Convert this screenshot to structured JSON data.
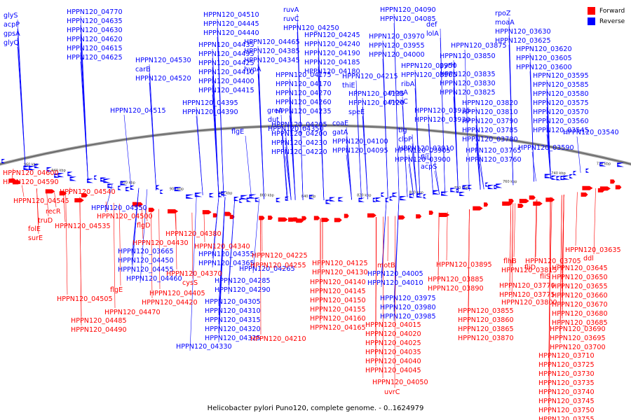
{
  "legend": {
    "forward": {
      "label": "Forward",
      "color": "#ff0000"
    },
    "reverse": {
      "label": "Reverse",
      "color": "#0000ff"
    }
  },
  "caption": "Helicobacter pylori Puno120, complete genome. - 0..1624979",
  "axis_ticks": [
    "960 kbp",
    "940 kbp",
    "920 kbp",
    "900 kbp",
    "880 kbp",
    "860 kbp",
    "840 kbp",
    "820 kbp",
    "800 kbp",
    "780 kbp",
    "760 kbp",
    "740 kbp",
    "720 kbp"
  ],
  "reverse_labels": [
    "glyS",
    "acpP",
    "gpsA",
    "glyQ",
    "HPPN120_04770",
    "HPPN120_04635",
    "HPPN120_04630",
    "HPPN120_04620",
    "HPPN120_04615",
    "HPPN120_04625",
    "HPPN120_04530",
    "carB",
    "HPPN120_04520",
    "HPPN120_04515",
    "HPPN120_04550",
    "HPPN120_04510",
    "HPPN120_04445",
    "HPPN120_04440",
    "HPPN120_04435",
    "HPPN120_04495",
    "HPPN120_04425",
    "HPPN120_04410",
    "HPPN120_04400",
    "HPPN120_04415",
    "HPPN120_04395",
    "HPPN120_04390",
    "HPPN120_04465",
    "HPPN120_04385",
    "HPPN120_04345",
    "hypA",
    "greA",
    "dut",
    "HPPN120_04350",
    "flgE",
    "ruvA",
    "ruvC",
    "HPPN120_04250",
    "HPPN120_04245",
    "HPPN120_04240",
    "HPPN120_04190",
    "HPPN120_04185",
    "HPPN120_04180",
    "HPPN120_04175",
    "HPPN120_04170",
    "HPPN120_04270",
    "HPPN120_04260",
    "HPPN120_04235",
    "HPPN120_04205",
    "HPPN120_04200",
    "HPPN120_04230",
    "HPPN120_04220",
    "HPPN120_04215",
    "thiE",
    "HPPN120_04135",
    "HPPN120_04120",
    "speE",
    "coaE",
    "gatA",
    "HPPN120_04100",
    "HPPN120_04095",
    "HPPN120_04090",
    "HPPN120_04085",
    "HPPN120_03970",
    "HPPN120_03955",
    "HPPN120_04000",
    "HPPN120_03950",
    "HPPN120_03965",
    "ribA",
    "mogA",
    "moaC",
    "HPPN120_03935",
    "HPPN120_03930",
    "tig",
    "clpP",
    "HPPN120_03910",
    "HPPN120_03905",
    "HPPN120_03900",
    "fliL",
    "acpS",
    "def",
    "lolA",
    "HPPN120_03875",
    "HPPN120_03850",
    "pyrH",
    "HPPN120_03835",
    "HPPN120_03830",
    "HPPN120_03825",
    "HPPN120_03820",
    "HPPN120_03810",
    "HPPN120_03790",
    "HPPN120_03785",
    "HPPN120_03780",
    "HPPN120_03765",
    "HPPN120_03760",
    "rpoZ",
    "moaA",
    "HPPN120_03630",
    "HPPN120_03625",
    "HPPN120_03620",
    "HPPN120_03605",
    "HPPN120_03600",
    "HPPN120_03595",
    "HPPN120_03585",
    "HPPN120_03580",
    "HPPN120_03575",
    "HPPN120_03570",
    "HPPN120_03560",
    "HPPN120_03545",
    "HPPN120_03540",
    "HPPN120_03590",
    "HPPN120_03665",
    "HPPN120_04450",
    "HPPN120_04455",
    "HPPN120_04460",
    "HPPN120_04355",
    "HPPN120_04365",
    "HPPN120_04265",
    "HPPN120_04285",
    "HPPN120_04290",
    "HPPN120_04305",
    "HPPN120_04310",
    "HPPN120_04315",
    "HPPN120_04320",
    "HPPN120_04325",
    "HPPN120_04330",
    "HPPN120_04005",
    "HPPN120_04010",
    "HPPN120_03975",
    "HPPN120_03980",
    "HPPN120_03985"
  ],
  "forward_labels": [
    "HPPN120_04600",
    "HPPN120_04590",
    "HPPN120_04540",
    "HPPN120_04545",
    "recR",
    "truD",
    "folE",
    "surE",
    "HPPN120_04535",
    "HPPN120_04500",
    "flgD",
    "HPPN120_04380",
    "HPPN120_04430",
    "HPPN120_04340",
    "HPPN120_04370",
    "cysS",
    "HPPN120_04405",
    "flgE",
    "HPPN120_04420",
    "HPPN120_04505",
    "HPPN120_04470",
    "HPPN120_04485",
    "HPPN120_04490",
    "HPPN120_04225",
    "HPPN120_04255",
    "HPPN120_04210",
    "HPPN120_04125",
    "HPPN120_04130",
    "HPPN120_04140",
    "HPPN120_04145",
    "HPPN120_04150",
    "HPPN120_04155",
    "HPPN120_04160",
    "HPPN120_04165",
    "motB",
    "HPPN120_04015",
    "HPPN120_04020",
    "HPPN120_04025",
    "HPPN120_04035",
    "HPPN120_04040",
    "HPPN120_04045",
    "HPPN120_04050",
    "uvrC",
    "HPPN120_03895",
    "HPPN120_03885",
    "HPPN120_03890",
    "HPPN120_03855",
    "HPPN120_03860",
    "HPPN120_03865",
    "HPPN120_03870",
    "flhB",
    "HPPN120_03815",
    "HPPN120_03770",
    "HPPN120_03775",
    "HPPN120_03800",
    "HPPN120_03705",
    "fliD",
    "fliS",
    "HPPN120_03635",
    "ddl",
    "HPPN120_03645",
    "HPPN120_03650",
    "HPPN120_03655",
    "HPPN120_03660",
    "HPPN120_03670",
    "HPPN120_03680",
    "HPPN120_03685",
    "HPPN120_03690",
    "HPPN120_03695",
    "HPPN120_03700",
    "HPPN120_03710",
    "HPPN120_03725",
    "HPPN120_03730",
    "HPPN120_03735",
    "HPPN120_03740",
    "HPPN120_03745",
    "HPPN120_03750",
    "HPPN120_03755"
  ]
}
